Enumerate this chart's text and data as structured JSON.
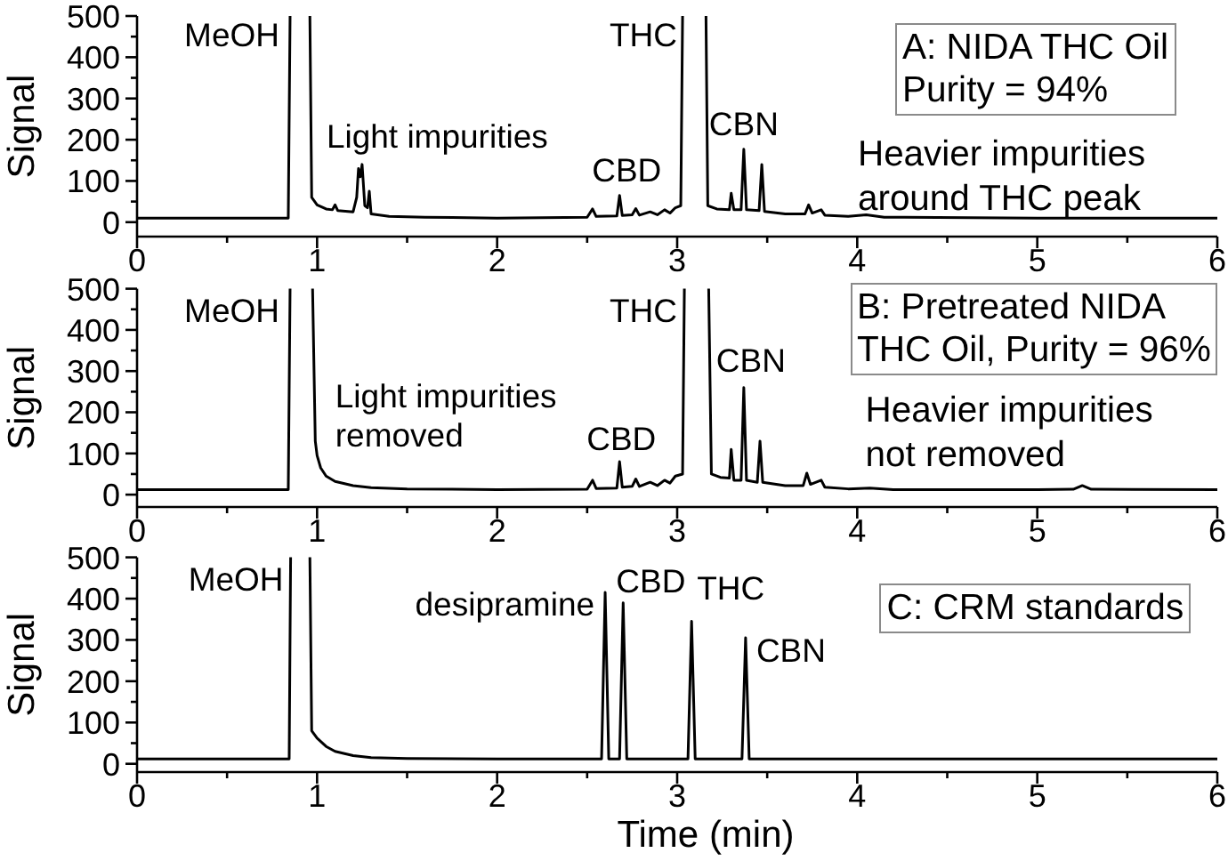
{
  "chart_data": [
    {
      "type": "line",
      "title": "A: NIDA THC Oil\nPurity = 94%",
      "ylabel": "Signal",
      "color": "#000000",
      "x": [
        0,
        0.84,
        0.85,
        0.9,
        0.96,
        0.97,
        1.0,
        1.05,
        1.085,
        1.1,
        1.115,
        1.2,
        1.22,
        1.23,
        1.24,
        1.25,
        1.265,
        1.28,
        1.29,
        1.3,
        1.4,
        1.6,
        2.0,
        2.5,
        2.53,
        2.55,
        2.665,
        2.68,
        2.695,
        2.75,
        2.77,
        2.79,
        2.85,
        2.89,
        2.93,
        2.96,
        2.99,
        3.02,
        3.03,
        3.1,
        3.16,
        3.17,
        3.22,
        3.29,
        3.3,
        3.315,
        3.355,
        3.37,
        3.385,
        3.455,
        3.47,
        3.485,
        3.6,
        3.71,
        3.73,
        3.75,
        3.8,
        3.82,
        3.95,
        4.05,
        4.15,
        5.0,
        6.0
      ],
      "values": [
        10,
        10,
        500,
        null,
        500,
        60,
        42,
        32,
        30,
        42,
        28,
        25,
        60,
        130,
        110,
        140,
        40,
        35,
        75,
        20,
        14,
        12,
        10,
        12,
        32,
        14,
        15,
        65,
        16,
        18,
        33,
        17,
        25,
        18,
        30,
        22,
        35,
        40,
        500,
        null,
        500,
        40,
        32,
        30,
        70,
        30,
        30,
        177,
        30,
        28,
        140,
        26,
        20,
        20,
        42,
        22,
        30,
        17,
        14,
        18,
        12,
        10,
        10
      ],
      "xlim": [
        0,
        6
      ],
      "xticks": [
        0,
        {
          "value": 0.5,
          "label": null
        },
        1,
        {
          "value": 1.5,
          "label": null
        },
        2,
        {
          "value": 2.5,
          "label": null
        },
        3,
        {
          "value": 3.5,
          "label": null
        },
        4,
        {
          "value": 4.5,
          "label": null
        },
        5,
        {
          "value": 5.5,
          "label": null
        },
        6
      ],
      "ylim": [
        -35,
        500
      ],
      "yticks": [
        0,
        {
          "value": 50,
          "label": null
        },
        100,
        {
          "value": 150,
          "label": null
        },
        200,
        {
          "value": 250,
          "label": null
        },
        300,
        {
          "value": 350,
          "label": null
        },
        400,
        {
          "value": 450,
          "label": null
        },
        500
      ],
      "annotations": [
        {
          "text": "MeOH",
          "x": 0.85,
          "y": 500
        },
        {
          "text": "Light impurities",
          "x": 1.24,
          "y": 140
        },
        {
          "text": "CBD",
          "x": 2.68,
          "y": 65
        },
        {
          "text": "THC",
          "x": 3.03,
          "y": 500
        },
        {
          "text": "CBN",
          "x": 3.37,
          "y": 177
        },
        "Heavier impurities\naround THC peak"
      ]
    },
    {
      "type": "line",
      "title": "B: Pretreated NIDA\nTHC Oil, Purity = 96%",
      "ylabel": "Signal",
      "color": "#000000",
      "x": [
        0,
        0.84,
        0.85,
        0.9,
        0.975,
        0.99,
        1.0,
        1.02,
        1.05,
        1.1,
        1.2,
        1.3,
        1.5,
        2.0,
        2.5,
        2.53,
        2.55,
        2.665,
        2.68,
        2.695,
        2.75,
        2.77,
        2.79,
        2.85,
        2.89,
        2.93,
        2.96,
        2.99,
        3.03,
        3.04,
        3.1,
        3.175,
        3.19,
        3.24,
        3.29,
        3.3,
        3.315,
        3.355,
        3.37,
        3.385,
        3.445,
        3.46,
        3.475,
        3.6,
        3.7,
        3.72,
        3.74,
        3.8,
        3.82,
        3.95,
        4.07,
        4.2,
        5.0,
        5.2,
        5.25,
        5.3,
        6.0
      ],
      "values": [
        12,
        12,
        500,
        null,
        500,
        130,
        95,
        65,
        45,
        32,
        22,
        17,
        14,
        12,
        13,
        35,
        15,
        16,
        80,
        18,
        20,
        38,
        20,
        30,
        22,
        35,
        28,
        45,
        50,
        500,
        null,
        500,
        50,
        42,
        40,
        110,
        35,
        35,
        260,
        35,
        30,
        130,
        30,
        22,
        22,
        52,
        25,
        35,
        18,
        14,
        16,
        12,
        12,
        13,
        22,
        13,
        12
      ],
      "xlim": [
        0,
        6
      ],
      "xticks": [
        0,
        {
          "value": 0.5,
          "label": null
        },
        1,
        {
          "value": 1.5,
          "label": null
        },
        2,
        {
          "value": 2.5,
          "label": null
        },
        3,
        {
          "value": 3.5,
          "label": null
        },
        4,
        {
          "value": 4.5,
          "label": null
        },
        5,
        {
          "value": 5.5,
          "label": null
        },
        6
      ],
      "ylim": [
        -30,
        500
      ],
      "yticks": [
        0,
        {
          "value": 50,
          "label": null
        },
        100,
        {
          "value": 150,
          "label": null
        },
        200,
        {
          "value": 250,
          "label": null
        },
        300,
        {
          "value": 350,
          "label": null
        },
        400,
        {
          "value": 450,
          "label": null
        },
        500
      ],
      "annotations": [
        {
          "text": "MeOH",
          "x": 0.85,
          "y": 500
        },
        "Light impurities\nremoved",
        {
          "text": "CBD",
          "x": 2.68,
          "y": 80
        },
        {
          "text": "THC",
          "x": 3.04,
          "y": 500
        },
        {
          "text": "CBN",
          "x": 3.37,
          "y": 260
        },
        "Heavier impurities\nnot removed"
      ]
    },
    {
      "type": "line",
      "title": "C: CRM standards",
      "xlabel": "Time (min)",
      "ylabel": "Signal",
      "color": "#000000",
      "x": [
        0,
        0.845,
        0.853,
        0.9,
        0.96,
        0.97,
        1.0,
        1.05,
        1.1,
        1.2,
        1.3,
        1.5,
        2.0,
        2.58,
        2.6,
        2.62,
        2.68,
        2.7,
        2.72,
        3.06,
        3.08,
        3.1,
        3.36,
        3.38,
        3.4,
        6.0
      ],
      "values": [
        12,
        12,
        500,
        null,
        500,
        80,
        62,
        42,
        30,
        20,
        15,
        13,
        12,
        12,
        415,
        12,
        12,
        390,
        12,
        12,
        345,
        12,
        12,
        305,
        12,
        12
      ],
      "xlim": [
        0,
        6
      ],
      "xticks": [
        0,
        {
          "value": 0.5,
          "label": null
        },
        1,
        {
          "value": 1.5,
          "label": null
        },
        2,
        {
          "value": 2.5,
          "label": null
        },
        3,
        {
          "value": 3.5,
          "label": null
        },
        4,
        {
          "value": 4.5,
          "label": null
        },
        5,
        {
          "value": 5.5,
          "label": null
        },
        6
      ],
      "ylim": [
        -20,
        500
      ],
      "yticks": [
        0,
        {
          "value": 50,
          "label": null
        },
        100,
        {
          "value": 150,
          "label": null
        },
        200,
        {
          "value": 250,
          "label": null
        },
        300,
        {
          "value": 350,
          "label": null
        },
        400,
        {
          "value": 450,
          "label": null
        },
        500
      ],
      "annotations": [
        {
          "text": "MeOH",
          "x": 0.853,
          "y": 500
        },
        {
          "text": "desipramine",
          "x": 2.6,
          "y": 415
        },
        {
          "text": "CBD",
          "x": 2.7,
          "y": 390
        },
        {
          "text": "THC",
          "x": 3.08,
          "y": 345
        },
        {
          "text": "CBN",
          "x": 3.38,
          "y": 305
        }
      ]
    }
  ]
}
